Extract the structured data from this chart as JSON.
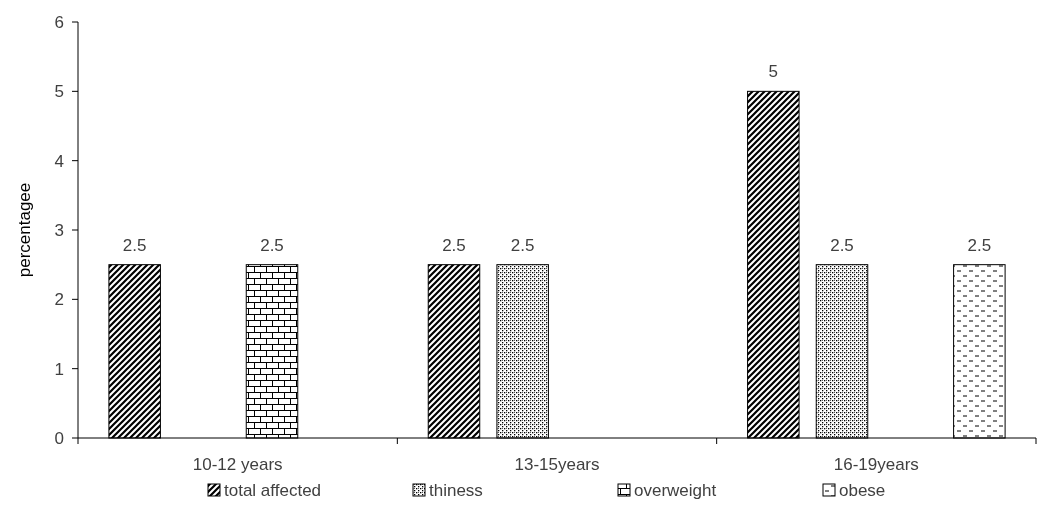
{
  "chart_data": {
    "type": "bar",
    "ylabel": "percentagee",
    "categories": [
      "10-12 years",
      "13-15years",
      "16-19years"
    ],
    "series": [
      {
        "name": "total affected",
        "color": "#000000",
        "values": [
          2.5,
          2.5,
          5
        ]
      },
      {
        "name": "thiness",
        "color": "#000000",
        "values": [
          null,
          2.5,
          2.5
        ]
      },
      {
        "name": "overweight",
        "color": "#000000",
        "values": [
          2.5,
          null,
          null
        ]
      },
      {
        "name": "obese",
        "color": "#000000",
        "values": [
          null,
          null,
          2.5
        ]
      }
    ],
    "ylim": [
      0,
      6
    ],
    "yticks": [
      0,
      1,
      2,
      3,
      4,
      5,
      6
    ],
    "grid": false,
    "legend": "bottom",
    "data_labels": true
  }
}
